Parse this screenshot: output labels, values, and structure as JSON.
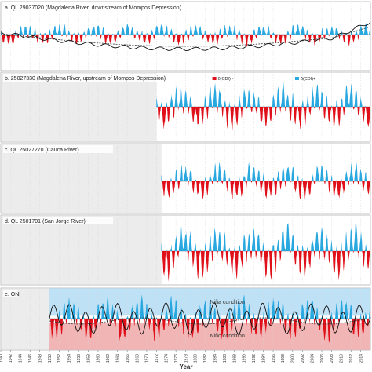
{
  "chart_data": {
    "type": "area",
    "xlabel": "Year",
    "x_range": [
      1940,
      2016
    ],
    "x_tick_labels": [
      "1940",
      "1942",
      "1944",
      "1946",
      "1948",
      "1950",
      "1952",
      "1954",
      "1956",
      "1958",
      "1960",
      "1962",
      "1964",
      "1966",
      "1968",
      "1970",
      "1972",
      "1974",
      "1976",
      "1978",
      "1980",
      "1982",
      "1984",
      "1986",
      "1988",
      "1990",
      "1992",
      "1994",
      "1996",
      "1998",
      "2000",
      "2002",
      "2004",
      "2006",
      "2008",
      "2010",
      "2012",
      "2014"
    ],
    "colors": {
      "positive": "#29a8e0",
      "negative": "#e0101a",
      "missing_band": "#ececec",
      "nina_band": "#bfe1f6",
      "nino_band": "#f2b5b5",
      "zero_line": "#777777"
    },
    "legend": [
      {
        "label": "δ(CDI) -",
        "color": "#e0101a"
      },
      {
        "label": "δ(CDI)+",
        "color": "#29a8e0"
      }
    ],
    "panels": [
      {
        "title": "a. QL 29037020 (Magdalena River, downstream of Mompos Depression)",
        "data_start": 1940,
        "overlay": "cumulative CDI (solid) with trend (dashed)"
      },
      {
        "title": "b. 25027330 (Magdalena River, upstream of Mompos Depression)",
        "data_start": 1972
      },
      {
        "title": "c. QL 25027270 (Cauca River)",
        "data_start": 1973
      },
      {
        "title": "d. QL 2501701 (San Jorge River)",
        "data_start": 1973
      },
      {
        "title": "e. ONI",
        "data_start": 1950,
        "bands": [
          {
            "label": "Niña condition"
          },
          {
            "label": "Niño condition"
          }
        ]
      }
    ]
  }
}
